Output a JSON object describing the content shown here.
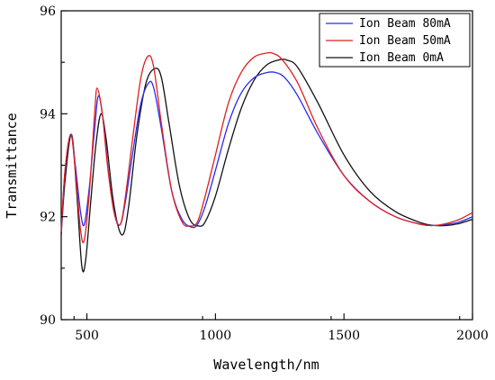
{
  "chart_data": {
    "type": "line",
    "title": "",
    "xlabel": "Wavelength/nm",
    "ylabel": "Transmittance",
    "xlim": [
      400,
      2000
    ],
    "ylim": [
      90,
      96
    ],
    "xticks": [
      500,
      1000,
      1500,
      2000
    ],
    "yticks": [
      90,
      92,
      94,
      96
    ],
    "xtick_labels": [
      "500",
      "1000",
      "1500",
      "2000"
    ],
    "ytick_labels": [
      "90",
      "92",
      "94",
      "96"
    ],
    "grid": false,
    "legend_position": "top-right",
    "series": [
      {
        "name": "Ion Beam 80mA",
        "color": "#2a2af0",
        "x": [
          400,
          415,
          437,
          455,
          475,
          490,
          510,
          530,
          545,
          565,
          585,
          610,
          630,
          650,
          680,
          710,
          740,
          760,
          790,
          830,
          870,
          905,
          930,
          960,
          1000,
          1050,
          1100,
          1150,
          1200,
          1235,
          1270,
          1320,
          1400,
          1500,
          1600,
          1700,
          1800,
          1850,
          1900,
          1950,
          2000
        ],
        "y": [
          91.7,
          92.9,
          93.6,
          93.0,
          92.1,
          91.85,
          92.6,
          93.7,
          94.35,
          93.8,
          92.8,
          92.0,
          91.85,
          92.3,
          93.3,
          94.2,
          94.6,
          94.5,
          93.7,
          92.5,
          91.95,
          91.8,
          91.85,
          92.2,
          92.9,
          93.8,
          94.4,
          94.7,
          94.8,
          94.8,
          94.7,
          94.35,
          93.6,
          92.8,
          92.3,
          92.0,
          91.85,
          91.83,
          91.85,
          91.9,
          92.0
        ]
      },
      {
        "name": "Ion Beam 50mA",
        "color": "#e02020",
        "x": [
          400,
          415,
          437,
          455,
          475,
          490,
          510,
          530,
          540,
          560,
          580,
          605,
          630,
          650,
          680,
          710,
          738,
          760,
          790,
          830,
          870,
          900,
          930,
          960,
          1000,
          1050,
          1100,
          1150,
          1200,
          1225,
          1260,
          1320,
          1400,
          1500,
          1600,
          1700,
          1800,
          1850,
          1900,
          1950,
          2000
        ],
        "y": [
          91.7,
          92.9,
          93.6,
          92.9,
          91.75,
          91.55,
          92.5,
          94.0,
          94.5,
          94.0,
          93.0,
          92.1,
          91.85,
          92.4,
          93.6,
          94.7,
          95.12,
          94.9,
          93.8,
          92.5,
          91.9,
          91.82,
          91.9,
          92.4,
          93.2,
          94.2,
          94.8,
          95.1,
          95.18,
          95.17,
          95.05,
          94.6,
          93.7,
          92.8,
          92.3,
          92.0,
          91.85,
          91.83,
          91.87,
          91.95,
          92.08
        ]
      },
      {
        "name": "Ion Beam 0mA",
        "color": "#111111",
        "x": [
          400,
          415,
          440,
          460,
          480,
          495,
          515,
          535,
          555,
          575,
          600,
          625,
          645,
          665,
          695,
          730,
          765,
          790,
          820,
          860,
          900,
          935,
          960,
          1000,
          1050,
          1100,
          1150,
          1200,
          1250,
          1280,
          1320,
          1400,
          1500,
          1600,
          1700,
          1800,
          1850,
          1900,
          1950,
          2000
        ],
        "y": [
          91.65,
          92.7,
          93.6,
          92.5,
          91.05,
          91.15,
          92.3,
          93.4,
          94.0,
          93.5,
          92.4,
          91.75,
          91.7,
          92.3,
          93.6,
          94.6,
          94.88,
          94.7,
          93.8,
          92.6,
          91.95,
          91.82,
          91.9,
          92.4,
          93.3,
          94.1,
          94.65,
          94.95,
          95.05,
          95.04,
          94.9,
          94.2,
          93.2,
          92.5,
          92.1,
          91.88,
          91.83,
          91.83,
          91.87,
          91.95
        ]
      }
    ]
  }
}
